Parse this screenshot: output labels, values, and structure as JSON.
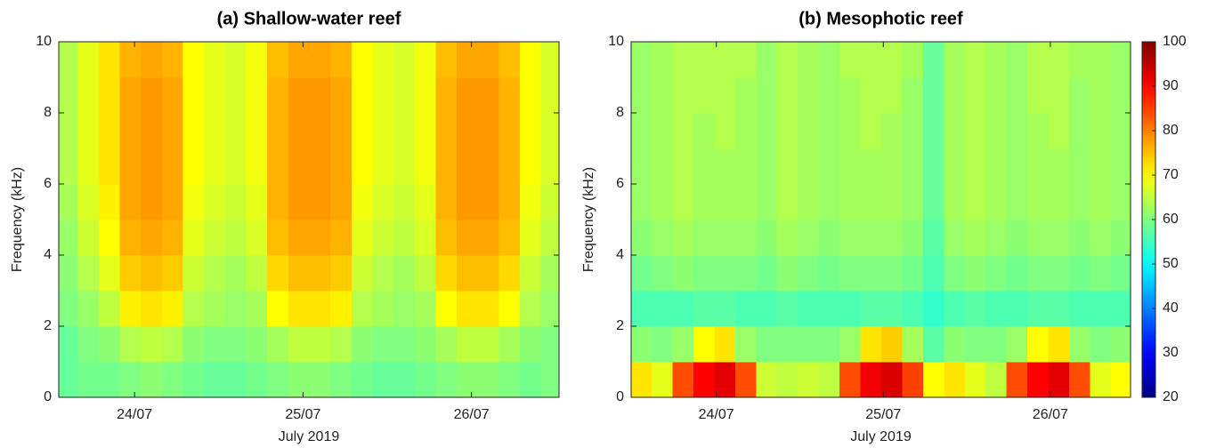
{
  "chart_data": [
    {
      "type": "heatmap",
      "title": "(a) Shallow-water reef",
      "xlabel": "July 2019",
      "ylabel": "Frequency (kHz)",
      "colormap": "jet",
      "clim": [
        20,
        100
      ],
      "xlim": [
        23.55,
        26.52
      ],
      "ylim": [
        0,
        10
      ],
      "xticks": [
        {
          "value": 24,
          "label": "24/07"
        },
        {
          "value": 25,
          "label": "25/07"
        },
        {
          "value": 26,
          "label": "26/07"
        }
      ],
      "yticks": [
        0,
        2,
        4,
        6,
        8,
        10
      ],
      "x": [
        23.6,
        23.725,
        23.85,
        23.975,
        24.1,
        24.225,
        24.35,
        24.475,
        24.6,
        24.725,
        24.85,
        24.975,
        25.1,
        25.225,
        25.35,
        25.475,
        25.6,
        25.725,
        25.85,
        25.975,
        26.1,
        26.225,
        26.35,
        26.475
      ],
      "y": [
        0.5,
        1.5,
        2.5,
        3.5,
        4.5,
        5.5,
        6.5,
        7.5,
        8.5,
        9.5
      ],
      "z": [
        [
          58,
          59,
          59,
          60,
          61,
          60,
          59,
          58,
          58,
          59,
          60,
          61,
          61,
          60,
          59,
          58,
          58,
          59,
          60,
          61,
          61,
          60,
          59,
          60
        ],
        [
          58,
          60,
          61,
          64,
          65,
          64,
          61,
          60,
          60,
          61,
          63,
          65,
          65,
          64,
          61,
          60,
          60,
          61,
          63,
          65,
          65,
          63,
          61,
          60
        ],
        [
          60,
          62,
          65,
          71,
          72,
          71,
          64,
          63,
          62,
          63,
          70,
          72,
          72,
          71,
          64,
          63,
          62,
          63,
          70,
          72,
          72,
          70,
          64,
          62
        ],
        [
          61,
          64,
          68,
          74,
          75,
          74,
          66,
          64,
          63,
          65,
          73,
          75,
          75,
          74,
          66,
          64,
          63,
          65,
          73,
          75,
          75,
          73,
          66,
          63
        ],
        [
          62,
          66,
          70,
          76,
          77,
          76,
          68,
          66,
          65,
          67,
          75,
          77,
          77,
          76,
          68,
          66,
          65,
          67,
          75,
          77,
          77,
          75,
          68,
          65
        ],
        [
          63,
          67,
          71,
          77,
          78,
          77,
          69,
          67,
          66,
          68,
          76,
          78,
          78,
          77,
          69,
          67,
          66,
          68,
          76,
          78,
          78,
          76,
          69,
          66
        ],
        [
          64,
          68,
          72,
          77,
          78,
          77,
          70,
          68,
          67,
          69,
          76,
          78,
          78,
          77,
          70,
          68,
          67,
          69,
          76,
          78,
          78,
          76,
          70,
          67
        ],
        [
          64,
          68,
          72,
          77,
          78,
          77,
          70,
          68,
          67,
          69,
          76,
          78,
          78,
          77,
          70,
          68,
          67,
          69,
          76,
          78,
          78,
          76,
          70,
          67
        ],
        [
          64,
          68,
          72,
          77,
          78,
          77,
          70,
          68,
          67,
          69,
          76,
          78,
          78,
          77,
          70,
          68,
          67,
          69,
          76,
          78,
          78,
          76,
          70,
          67
        ],
        [
          64,
          68,
          72,
          76,
          77,
          76,
          70,
          68,
          67,
          69,
          75,
          77,
          77,
          76,
          70,
          68,
          67,
          69,
          75,
          77,
          77,
          75,
          70,
          67
        ]
      ]
    },
    {
      "type": "heatmap",
      "title": "(b) Mesophotic reef",
      "xlabel": "July 2019",
      "ylabel": "Frequency (kHz)",
      "colormap": "jet",
      "clim": [
        20,
        100
      ],
      "colorbar_ticks": [
        20,
        30,
        40,
        50,
        60,
        70,
        80,
        90,
        100
      ],
      "xlim": [
        23.49,
        26.48
      ],
      "ylim": [
        0,
        10
      ],
      "xticks": [
        {
          "value": 24,
          "label": "24/07"
        },
        {
          "value": 25,
          "label": "25/07"
        },
        {
          "value": 26,
          "label": "26/07"
        }
      ],
      "yticks": [
        0,
        2,
        4,
        6,
        8,
        10
      ],
      "x": [
        23.55,
        23.675,
        23.8,
        23.925,
        24.05,
        24.175,
        24.3,
        24.425,
        24.55,
        24.675,
        24.8,
        24.925,
        25.05,
        25.175,
        25.3,
        25.425,
        25.55,
        25.675,
        25.8,
        25.925,
        26.05,
        26.175,
        26.3,
        26.425
      ],
      "y": [
        0.5,
        1.5,
        2.5,
        3.5,
        4.5,
        5.5,
        6.5,
        7.5,
        8.5,
        9.5
      ],
      "z": [
        [
          72,
          68,
          84,
          90,
          92,
          84,
          66,
          65,
          66,
          65,
          84,
          91,
          93,
          85,
          70,
          72,
          68,
          65,
          84,
          90,
          92,
          84,
          68,
          70
        ],
        [
          61,
          60,
          62,
          70,
          72,
          62,
          60,
          60,
          60,
          60,
          62,
          72,
          74,
          63,
          57,
          61,
          60,
          60,
          62,
          70,
          72,
          62,
          60,
          61
        ],
        [
          56,
          56,
          56,
          57,
          57,
          56,
          56,
          57,
          56,
          56,
          56,
          57,
          57,
          56,
          54,
          56,
          57,
          56,
          56,
          57,
          57,
          56,
          56,
          56
        ],
        [
          59,
          60,
          61,
          60,
          60,
          60,
          59,
          61,
          60,
          59,
          60,
          60,
          60,
          59,
          56,
          60,
          61,
          60,
          59,
          60,
          60,
          59,
          60,
          59
        ],
        [
          61,
          62,
          63,
          62,
          62,
          62,
          61,
          63,
          62,
          61,
          62,
          62,
          62,
          61,
          57,
          62,
          63,
          62,
          61,
          62,
          62,
          61,
          62,
          61
        ],
        [
          62,
          63,
          64,
          63,
          63,
          63,
          62,
          64,
          63,
          62,
          63,
          63,
          63,
          62,
          58,
          63,
          64,
          63,
          62,
          63,
          63,
          62,
          63,
          62
        ],
        [
          62,
          63,
          64,
          63,
          63,
          63,
          62,
          64,
          63,
          62,
          63,
          63,
          63,
          62,
          58,
          63,
          64,
          63,
          62,
          63,
          63,
          62,
          63,
          62
        ],
        [
          62,
          63,
          64,
          63,
          64,
          63,
          62,
          64,
          63,
          62,
          63,
          64,
          63,
          62,
          58,
          63,
          64,
          63,
          62,
          63,
          64,
          62,
          63,
          62
        ],
        [
          62,
          63,
          64,
          64,
          64,
          63,
          62,
          64,
          63,
          62,
          63,
          64,
          64,
          62,
          58,
          63,
          64,
          63,
          62,
          64,
          64,
          62,
          63,
          62
        ],
        [
          62,
          63,
          64,
          64,
          64,
          64,
          62,
          64,
          63,
          62,
          64,
          64,
          64,
          63,
          58,
          63,
          64,
          63,
          62,
          64,
          64,
          63,
          63,
          62
        ]
      ]
    }
  ]
}
